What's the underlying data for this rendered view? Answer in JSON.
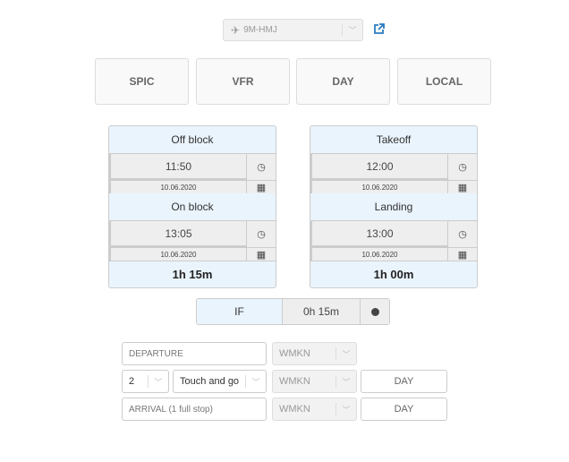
{
  "aircraft": {
    "value": "9M-HMJ",
    "icon": "plane-icon",
    "link_icon": "external-link-icon",
    "link_color": "#2a7ac0"
  },
  "mode_buttons": [
    "SPIC",
    "VFR",
    "DAY",
    "LOCAL"
  ],
  "block": {
    "start_label": "Off block",
    "start_time": "11:50",
    "start_date": "10.06.2020",
    "end_label": "On block",
    "end_time": "13:05",
    "end_date": "10.06.2020",
    "total": "1h 15m"
  },
  "flight": {
    "start_label": "Takeoff",
    "start_time": "12:00",
    "start_date": "10.06.2020",
    "end_label": "Landing",
    "end_time": "13:00",
    "end_date": "10.06.2020",
    "total": "1h 00m"
  },
  "if_time": {
    "label": "IF",
    "value": "0h 15m"
  },
  "legs": {
    "departure": {
      "label": "DEPARTURE",
      "airport": "WMKN"
    },
    "touch": {
      "count": "2",
      "type": "Touch and go",
      "airport": "WMKN",
      "period": "DAY"
    },
    "arrival": {
      "label": "ARRIVAL (1 full stop)",
      "airport": "WMKN",
      "period": "DAY"
    }
  },
  "colors": {
    "card_header": "#eaf4fd",
    "input_bg": "#eeeeee"
  }
}
